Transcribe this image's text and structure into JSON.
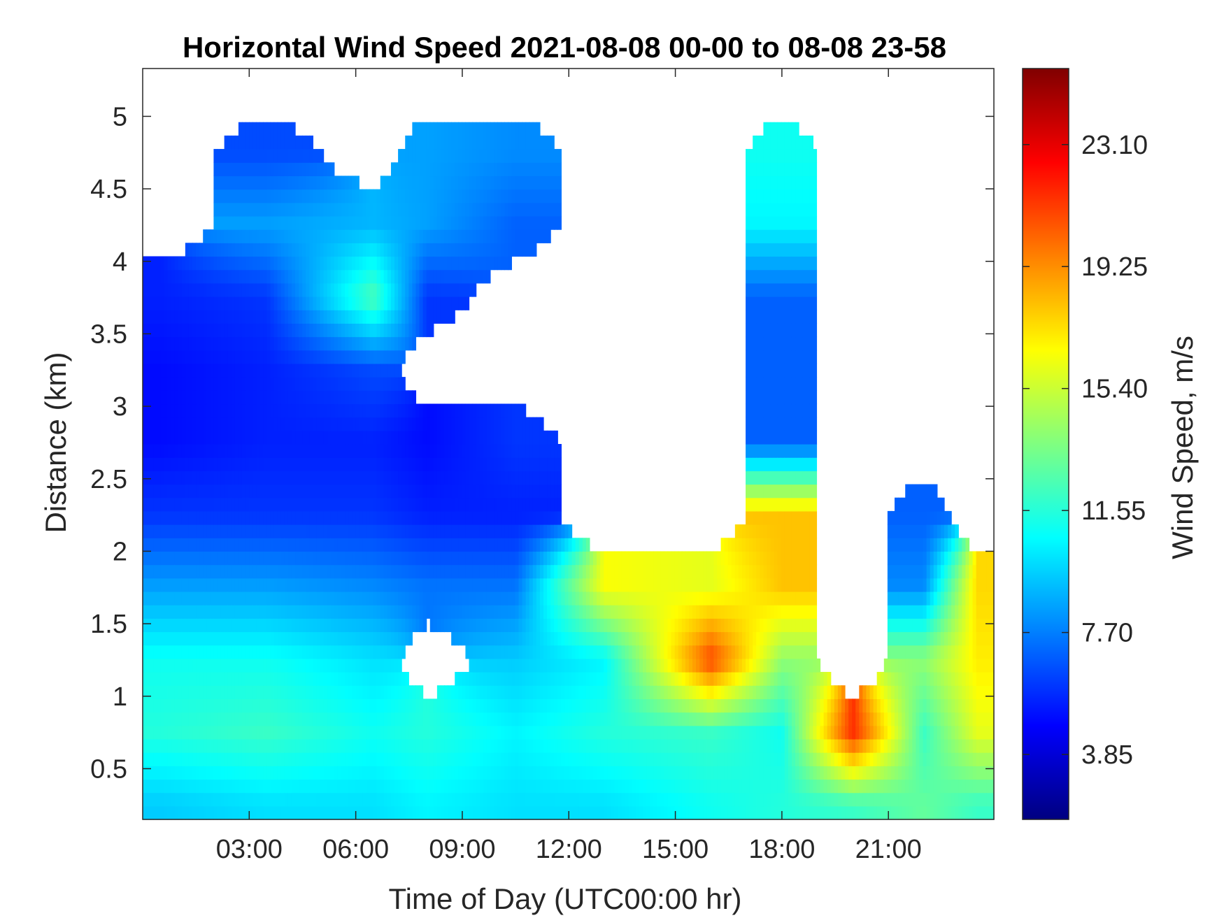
{
  "chart_data": {
    "type": "heatmap",
    "title": "Horizontal Wind Speed 2021-08-08 00-00 to 08-08 23-58",
    "xlabel": "Time of Day (UTC00:00 hr)",
    "ylabel": "Distance (km)",
    "xlim_hours": [
      0,
      23.97
    ],
    "ylim_km": [
      0.15,
      5.33
    ],
    "x_ticks_hours": [
      3,
      6,
      9,
      12,
      15,
      18,
      21
    ],
    "x_tick_labels": [
      "03:00",
      "06:00",
      "09:00",
      "12:00",
      "15:00",
      "18:00",
      "21:00"
    ],
    "y_ticks": [
      0.5,
      1,
      1.5,
      2,
      2.5,
      3,
      3.5,
      4,
      4.5,
      5
    ],
    "y_tick_labels": [
      "0.5",
      "1",
      "1.5",
      "2",
      "2.5",
      "3",
      "3.5",
      "4",
      "4.5",
      "5"
    ],
    "colorbar": {
      "label": "Wind Speed, m/s",
      "colormap": "jet",
      "clim": [
        1.8,
        25.5
      ],
      "ticks": [
        3.85,
        7.7,
        11.55,
        15.4,
        19.25,
        23.1
      ],
      "tick_labels": [
        "3.85",
        "7.70",
        "11.55",
        "15.40",
        "19.25",
        "23.10"
      ]
    },
    "grid": false,
    "approx_field": {
      "description_units": "wind speed (m/s) at representative times (hours) by height (km); white = no data",
      "times": [
        0.5,
        3.5,
        6.5,
        8.0,
        10.5,
        13.0,
        16.0,
        18.0,
        20.0,
        22.0,
        23.5
      ],
      "heights": [
        0.25,
        0.75,
        1.25,
        1.75,
        2.25,
        2.75,
        3.25,
        3.75,
        4.25,
        4.75,
        5.25
      ],
      "speed": [
        [
          9.5,
          10.0,
          10.0,
          10.5,
          10.0,
          10.0,
          11.0,
          11.5,
          12.0,
          13.0,
          12.0
        ],
        [
          11.5,
          12.0,
          11.0,
          11.5,
          10.5,
          11.5,
          12.0,
          11.0,
          21.5,
          12.0,
          16.0
        ],
        [
          11.0,
          11.0,
          10.0,
          null,
          9.5,
          10.5,
          21.0,
          14.0,
          null,
          14.0,
          17.0
        ],
        [
          8.5,
          8.5,
          8.0,
          7.5,
          7.5,
          16.5,
          16.0,
          18.0,
          null,
          8.0,
          17.5
        ],
        [
          6.0,
          6.0,
          6.0,
          5.5,
          5.5,
          null,
          null,
          18.0,
          null,
          7.0,
          null
        ],
        [
          5.0,
          5.5,
          5.5,
          5.0,
          6.0,
          null,
          null,
          7.0,
          null,
          null,
          null
        ],
        [
          5.0,
          5.5,
          6.5,
          null,
          null,
          null,
          null,
          7.0,
          null,
          null,
          null
        ],
        [
          5.5,
          6.0,
          12.5,
          6.0,
          null,
          null,
          null,
          7.0,
          null,
          null,
          null
        ],
        [
          null,
          8.5,
          9.0,
          8.5,
          7.0,
          null,
          null,
          10.5,
          null,
          null,
          null
        ],
        [
          null,
          6.5,
          null,
          8.5,
          8.0,
          null,
          null,
          11.0,
          null,
          null,
          null
        ],
        [
          null,
          null,
          null,
          null,
          null,
          null,
          null,
          null,
          null,
          null,
          null
        ]
      ]
    }
  }
}
